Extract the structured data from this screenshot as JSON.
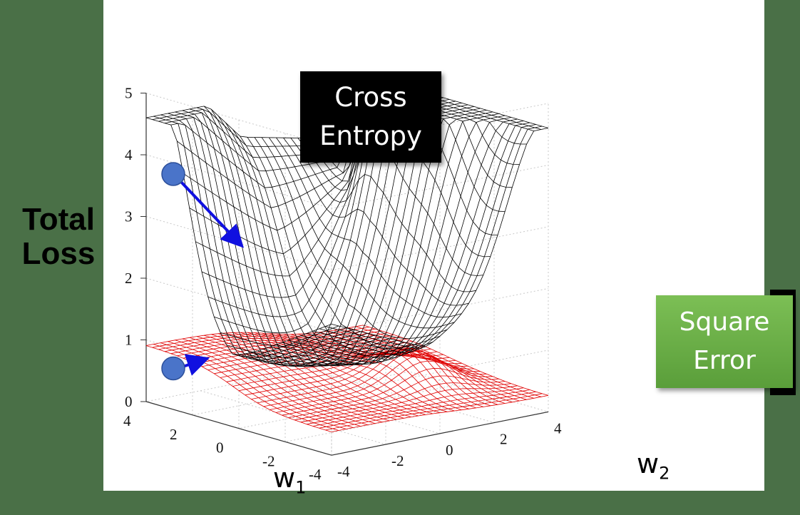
{
  "labels": {
    "ylabel_line1": "Total",
    "ylabel_line2": "Loss",
    "cross_entropy_line1": "Cross",
    "cross_entropy_line2": "Entropy",
    "square_error_line1": "Square",
    "square_error_line2": "Error",
    "w1_base": "w",
    "w1_sub": "1",
    "w2_base": "w",
    "w2_sub": "2"
  },
  "chart_data": {
    "type": "surface3d",
    "z_ticks": [
      "0",
      "1",
      "2",
      "3",
      "4",
      "5"
    ],
    "w1_ticks": [
      "4",
      "2",
      "0",
      "-2",
      "-4"
    ],
    "w2_ticks": [
      "-4",
      "-2",
      "0",
      "2",
      "4"
    ],
    "zlim": [
      0,
      5
    ],
    "w1_range": [
      -4,
      4
    ],
    "w2_range": [
      -4,
      4
    ],
    "grid": true,
    "series": [
      {
        "name": "Cross Entropy",
        "color": "#000000"
      },
      {
        "name": "Square Error",
        "color": "#e00000"
      }
    ],
    "markers": [
      {
        "surface": "Cross Entropy",
        "w1": 4,
        "w2": -3,
        "z": 3.6,
        "color": "#4a74c9",
        "arrow_color": "#1010e0"
      },
      {
        "surface": "Square Error",
        "w1": 4,
        "w2": -3,
        "z": 0.45,
        "color": "#4a74c9",
        "arrow_color": "#1010e0"
      }
    ]
  }
}
